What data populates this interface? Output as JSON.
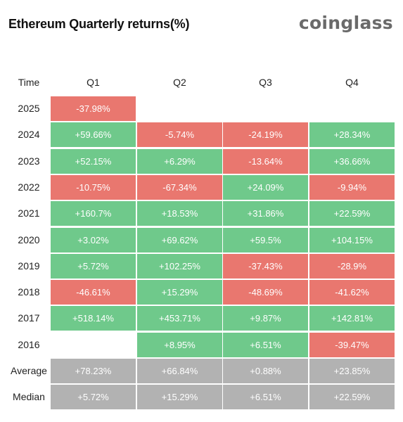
{
  "title": "Ethereum Quarterly returns(%)",
  "brand": "coinglass",
  "colors": {
    "positive": "#6fc98b",
    "negative": "#e9776f",
    "summary": "#b2b2b2"
  },
  "chart_data": {
    "type": "table",
    "title": "Ethereum Quarterly returns(%)",
    "row_header": "Time",
    "columns": [
      "Q1",
      "Q2",
      "Q3",
      "Q4"
    ],
    "rows": [
      {
        "label": "2025",
        "kind": "year",
        "cells": [
          "-37.98%",
          "",
          "",
          ""
        ]
      },
      {
        "label": "2024",
        "kind": "year",
        "cells": [
          "+59.66%",
          "-5.74%",
          "-24.19%",
          "+28.34%"
        ]
      },
      {
        "label": "2023",
        "kind": "year",
        "cells": [
          "+52.15%",
          "+6.29%",
          "-13.64%",
          "+36.66%"
        ]
      },
      {
        "label": "2022",
        "kind": "year",
        "cells": [
          "-10.75%",
          "-67.34%",
          "+24.09%",
          "-9.94%"
        ]
      },
      {
        "label": "2021",
        "kind": "year",
        "cells": [
          "+160.7%",
          "+18.53%",
          "+31.86%",
          "+22.59%"
        ]
      },
      {
        "label": "2020",
        "kind": "year",
        "cells": [
          "+3.02%",
          "+69.62%",
          "+59.5%",
          "+104.15%"
        ]
      },
      {
        "label": "2019",
        "kind": "year",
        "cells": [
          "+5.72%",
          "+102.25%",
          "-37.43%",
          "-28.9%"
        ]
      },
      {
        "label": "2018",
        "kind": "year",
        "cells": [
          "-46.61%",
          "+15.29%",
          "-48.69%",
          "-41.62%"
        ]
      },
      {
        "label": "2017",
        "kind": "year",
        "cells": [
          "+518.14%",
          "+453.71%",
          "+9.87%",
          "+142.81%"
        ]
      },
      {
        "label": "2016",
        "kind": "year",
        "cells": [
          "",
          "+8.95%",
          "+6.51%",
          "-39.47%"
        ]
      },
      {
        "label": "Average",
        "kind": "summary",
        "cells": [
          "+78.23%",
          "+66.84%",
          "+0.88%",
          "+23.85%"
        ]
      },
      {
        "label": "Median",
        "kind": "summary",
        "cells": [
          "+5.72%",
          "+15.29%",
          "+6.51%",
          "+22.59%"
        ]
      }
    ]
  }
}
